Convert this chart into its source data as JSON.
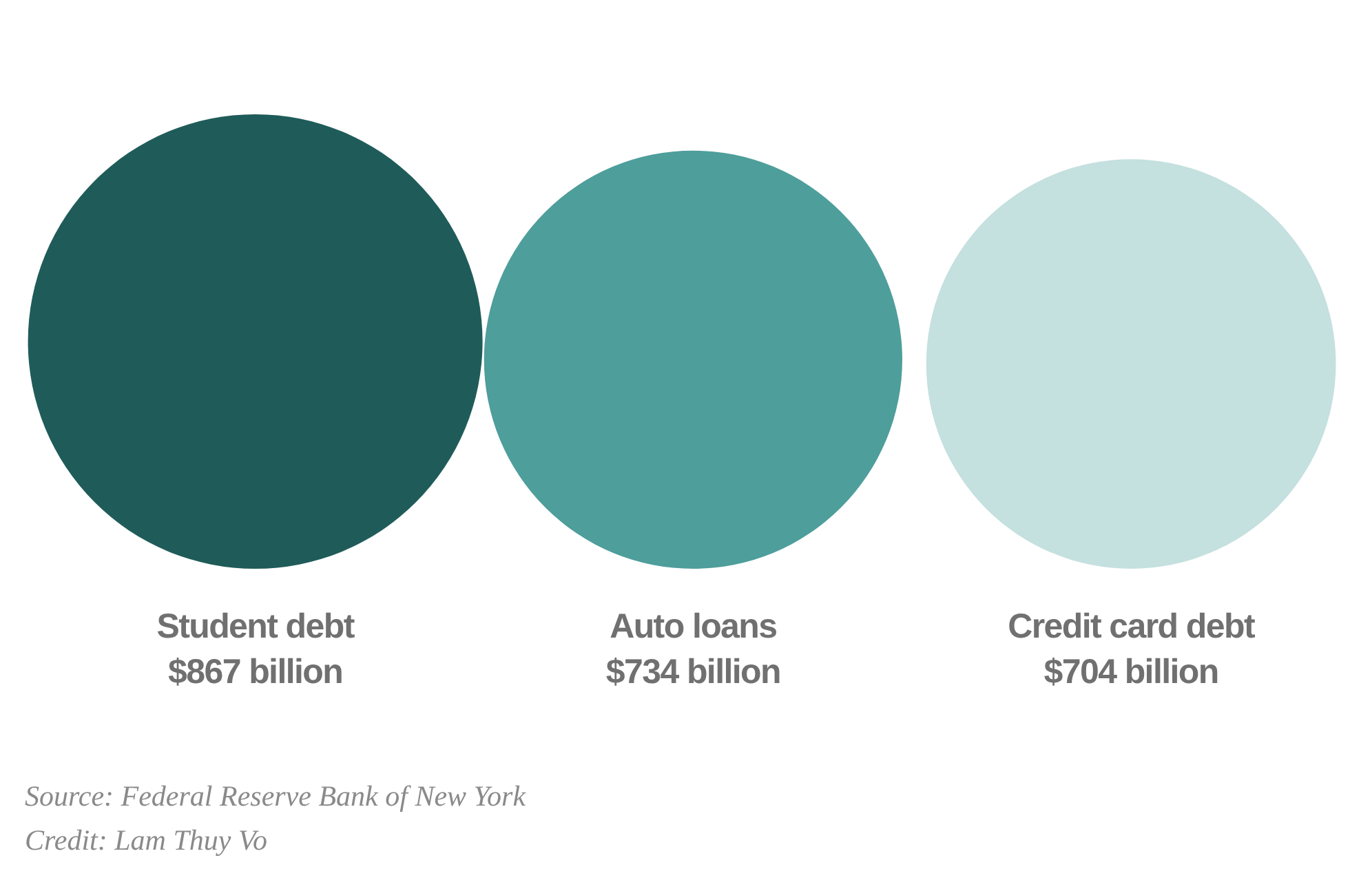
{
  "chart_data": {
    "type": "other",
    "categories": [
      "Student debt",
      "Auto loans",
      "Credit card debt"
    ],
    "values": [
      867,
      734,
      704
    ],
    "value_labels": [
      "$867 billion",
      "$734 billion",
      "$704 billion"
    ],
    "colors": [
      "#1f5c59",
      "#4e9e9b",
      "#c4e0df"
    ],
    "annotations": [
      "Source: Federal Reserve Bank of New York",
      "Credit: Lam Thuy Vo"
    ]
  }
}
